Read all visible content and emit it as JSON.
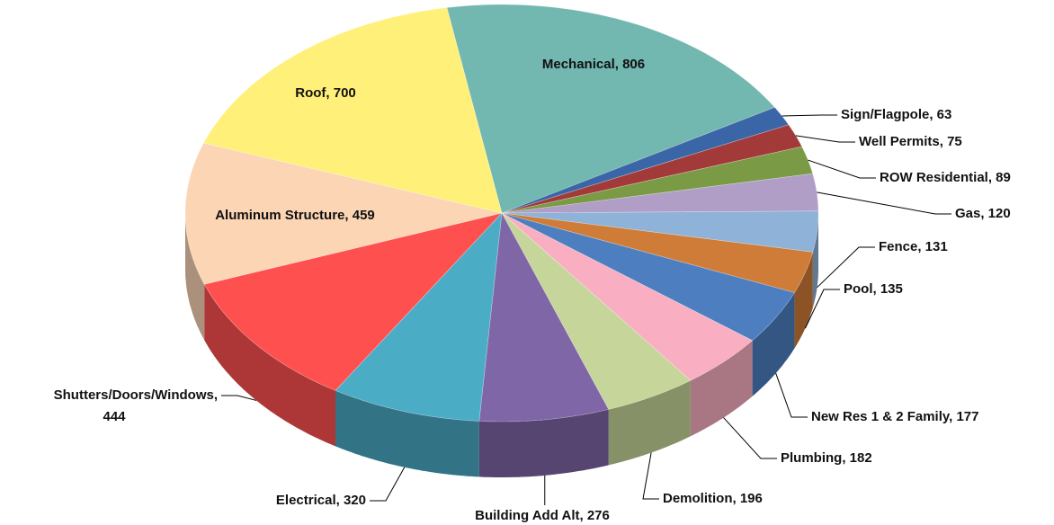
{
  "chart_data": {
    "type": "pie3d",
    "values": [
      806,
      63,
      75,
      89,
      120,
      131,
      135,
      177,
      182,
      196,
      276,
      320,
      444,
      459,
      700
    ],
    "value_labels": [
      "Mechanical, 806",
      "Sign/Flagpole, 63",
      "Well Permits, 75",
      "ROW Residential, 89",
      "Gas, 120",
      "Fence, 131",
      "Pool, 135",
      "New Res 1 & 2 Family, 177",
      "Plumbing, 182",
      "Demolition, 196",
      "Building Add Alt, 276",
      "Electrical, 320",
      "Shutters/Doors/Windows, 444",
      "Aluminum Structure, 459",
      "Roof, 700"
    ],
    "colors": [
      "#72b7b0",
      "#3a66a8",
      "#a33a3a",
      "#7a9a45",
      "#b09ec7",
      "#8eb2d8",
      "#cf7c38",
      "#4d7fc0",
      "#f9aec2",
      "#c6d69a",
      "#7f66a6",
      "#4bacc6",
      "#ff5050",
      "#fcd5b5",
      "#fff07a"
    ]
  }
}
